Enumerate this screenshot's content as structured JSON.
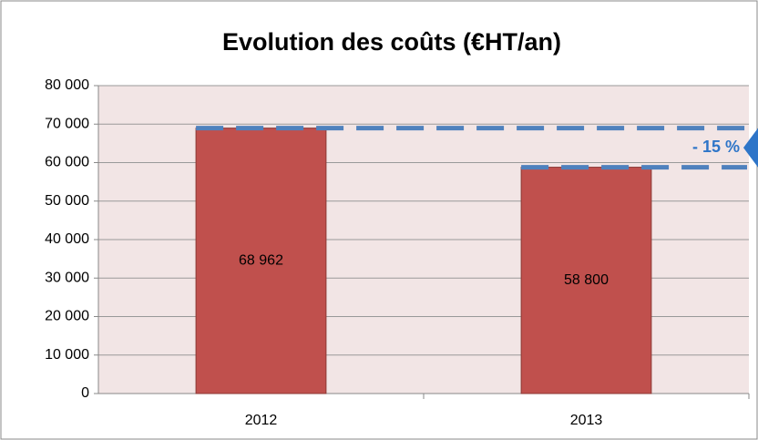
{
  "chart_data": {
    "type": "bar",
    "title": "Evolution des coûts (€HT/an)",
    "categories": [
      "2012",
      "2013"
    ],
    "values": [
      68962,
      58800
    ],
    "value_labels": [
      "68 962",
      "58 800"
    ],
    "color": "#c0504d",
    "ylim": [
      0,
      80000
    ],
    "yticks": [
      0,
      {
        "value": 10000,
        "label": "10 000"
      },
      {
        "value": 20000,
        "label": "20 000"
      },
      {
        "value": 30000,
        "label": "30 000"
      },
      {
        "value": 40000,
        "label": "40 000"
      },
      {
        "value": 50000,
        "label": "50 000"
      },
      {
        "value": 60000,
        "label": "60 000"
      },
      {
        "value": 70000,
        "label": "70 000"
      },
      {
        "value": 80000,
        "label": "80 000"
      }
    ],
    "grid": true,
    "annotation": "- 15 %"
  }
}
